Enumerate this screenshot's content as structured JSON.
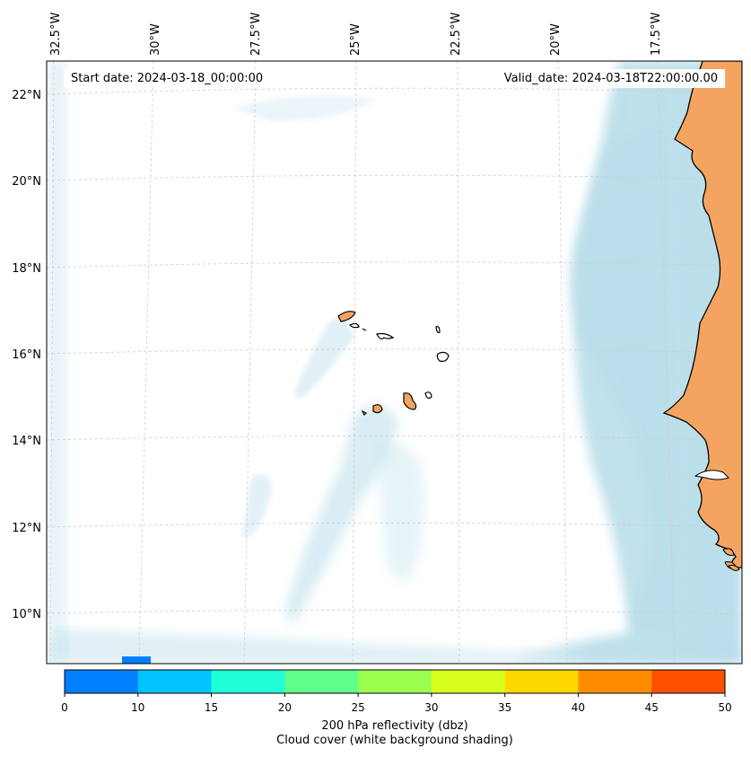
{
  "map": {
    "start_date": "Start date: 2024-03-18_00:00:00",
    "valid_date": "Valid_date: 2024-03-18T22:00:00.00",
    "lon_labels": [
      "32.5°W",
      "30°W",
      "27.5°W",
      "25°W",
      "22.5°W",
      "20°W",
      "17.5°W"
    ],
    "lat_labels": [
      "22°N",
      "20°N",
      "18°N",
      "16°N",
      "14°N",
      "12°N",
      "10°N"
    ],
    "colors": {
      "cloud": "#add8e6",
      "land": "#f4a460",
      "coast": "#000000",
      "grid": "#cccccc"
    }
  },
  "colorbar": {
    "ticks": [
      "0",
      "10",
      "15",
      "20",
      "25",
      "30",
      "35",
      "40",
      "45",
      "50"
    ],
    "colors": [
      "#0080ff",
      "#00c4ff",
      "#20ffd8",
      "#60ff8c",
      "#9cff50",
      "#d8ff20",
      "#ffd800",
      "#ff8c00",
      "#ff5000"
    ],
    "label_line1": "200 hPa reflectivity (dbz)",
    "label_line2": "Cloud cover (white background shading)"
  }
}
